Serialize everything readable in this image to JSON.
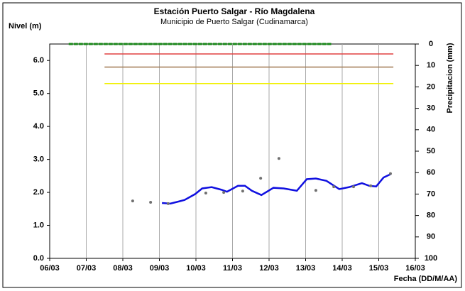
{
  "chart_data": {
    "type": "line",
    "title": "Estación Puerto Salgar - Río Magdalena",
    "subtitle": "Municipio de Puerto Salgar (Cudinamarca)",
    "ylabel": "Nivel (m)",
    "y2label": "Precipitacion (mm)",
    "xlabel": "Fecha (DD/M/AA)",
    "xlim": [
      6,
      16
    ],
    "xticks": [
      {
        "value": 6,
        "label": "06/03"
      },
      {
        "value": 7,
        "label": "07/03"
      },
      {
        "value": 8,
        "label": "08/03"
      },
      {
        "value": 9,
        "label": "09/03"
      },
      {
        "value": 10,
        "label": "10/03"
      },
      {
        "value": 11,
        "label": "11/03"
      },
      {
        "value": 12,
        "label": "12/03"
      },
      {
        "value": 13,
        "label": "13/03"
      },
      {
        "value": 14,
        "label": "14/03"
      },
      {
        "value": 15,
        "label": "15/03"
      },
      {
        "value": 16,
        "label": "16/03"
      }
    ],
    "ylim": [
      0,
      6.5
    ],
    "yticks": [
      {
        "value": 0,
        "label": "0.0"
      },
      {
        "value": 1,
        "label": "1.0"
      },
      {
        "value": 2,
        "label": "2.0"
      },
      {
        "value": 3,
        "label": "3.0"
      },
      {
        "value": 4,
        "label": "4.0"
      },
      {
        "value": 5,
        "label": "5.0"
      },
      {
        "value": 6,
        "label": "6.0"
      }
    ],
    "y2lim": [
      100,
      0
    ],
    "y2ticks": [
      0,
      10,
      20,
      30,
      40,
      50,
      60,
      70,
      80,
      90,
      100
    ],
    "grid": "x",
    "reference_lines": [
      {
        "value": 0,
        "axis": "y2",
        "color": "#1a8a1a",
        "x": [
          6.52,
          13.7
        ]
      },
      {
        "value": 6.2,
        "color": "#e04040",
        "x": [
          7.5,
          15.4
        ]
      },
      {
        "value": 5.8,
        "color": "#a07850",
        "x": [
          7.5,
          15.4
        ]
      },
      {
        "value": 5.3,
        "color": "#f0f000",
        "x": [
          7.5,
          15.4
        ]
      }
    ],
    "series": [
      {
        "kind": "line",
        "color": "#1010e0",
        "x": [
          9.07,
          9.3,
          9.69,
          9.98,
          10.17,
          10.43,
          10.7,
          10.85,
          11.15,
          11.34,
          11.53,
          11.79,
          12.12,
          12.4,
          12.76,
          13.03,
          13.28,
          13.57,
          13.92,
          14.19,
          14.54,
          14.74,
          14.93,
          15.13,
          15.32
        ],
        "values": [
          1.68,
          1.66,
          1.77,
          1.95,
          2.12,
          2.16,
          2.08,
          2.02,
          2.2,
          2.2,
          2.05,
          1.92,
          2.14,
          2.12,
          2.05,
          2.4,
          2.42,
          2.35,
          2.1,
          2.16,
          2.28,
          2.2,
          2.18,
          2.45,
          2.55
        ]
      },
      {
        "kind": "scatter",
        "color": "#707070",
        "x": [
          8.27,
          8.76,
          9.24,
          10.27,
          10.76,
          11.28,
          11.77,
          12.27,
          13.28,
          13.77,
          14.31,
          14.78,
          15.32
        ],
        "values": [
          1.74,
          1.7,
          1.66,
          1.98,
          2.0,
          2.04,
          2.43,
          3.03,
          2.06,
          2.17,
          2.17,
          2.2,
          2.57
        ]
      }
    ]
  }
}
